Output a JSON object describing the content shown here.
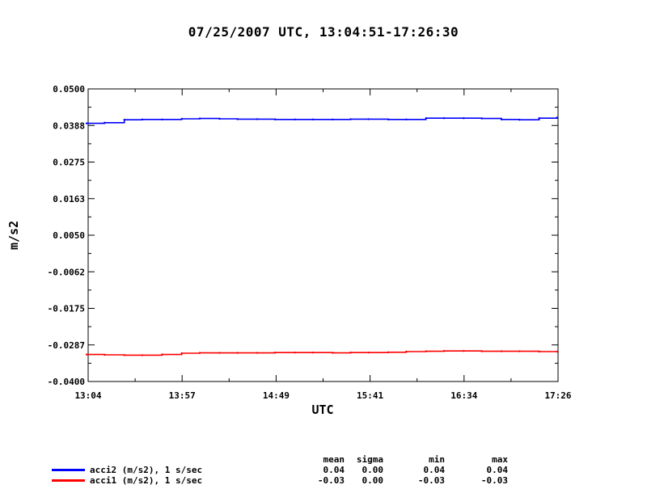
{
  "title": "07/25/2007  UTC, 13:04:51-17:26:30",
  "chart_data": {
    "type": "line",
    "title": "07/25/2007  UTC, 13:04:51-17:26:30",
    "xlabel": "UTC",
    "ylabel": "m/s2",
    "x_ticks": [
      "13:04",
      "13:57",
      "14:49",
      "15:41",
      "16:34",
      "17:26"
    ],
    "y_ticks": [
      "0.0500",
      "0.0388",
      "0.0275",
      "0.0163",
      "0.0050",
      "-0.0062",
      "-0.0175",
      "-0.0287",
      "-0.0400"
    ],
    "ylim": [
      -0.04,
      0.05
    ],
    "xlim": [
      "13:04:51",
      "17:26:30"
    ],
    "grid": false,
    "series": [
      {
        "name": "acci2 (m/s2), 1 s/sec",
        "color": "#0000ff",
        "x": [
          "13:04",
          "13:14",
          "13:25",
          "13:35",
          "13:46",
          "13:57",
          "14:07",
          "14:18",
          "14:28",
          "14:39",
          "14:49",
          "15:00",
          "15:10",
          "15:21",
          "15:31",
          "15:41",
          "15:52",
          "16:02",
          "16:13",
          "16:23",
          "16:34",
          "16:44",
          "16:55",
          "17:05",
          "17:16",
          "17:26"
        ],
        "values": [
          0.0394,
          0.0396,
          0.0405,
          0.0406,
          0.0406,
          0.0408,
          0.0409,
          0.0408,
          0.0407,
          0.0407,
          0.0406,
          0.0406,
          0.0406,
          0.0406,
          0.0407,
          0.0407,
          0.0406,
          0.0406,
          0.041,
          0.041,
          0.041,
          0.0409,
          0.0406,
          0.0405,
          0.041,
          0.0412
        ]
      },
      {
        "name": "acci1 (m/s2), 1 s/sec",
        "color": "#ff0000",
        "x": [
          "13:04",
          "13:14",
          "13:25",
          "13:35",
          "13:46",
          "13:57",
          "14:07",
          "14:18",
          "14:28",
          "14:39",
          "14:49",
          "15:00",
          "15:10",
          "15:21",
          "15:31",
          "15:41",
          "15:52",
          "16:02",
          "16:13",
          "16:23",
          "16:34",
          "16:44",
          "16:55",
          "17:05",
          "17:16",
          "17:26"
        ],
        "values": [
          -0.0317,
          -0.0318,
          -0.0319,
          -0.0319,
          -0.0317,
          -0.0313,
          -0.0312,
          -0.0312,
          -0.0312,
          -0.0312,
          -0.0311,
          -0.0311,
          -0.0311,
          -0.0312,
          -0.0311,
          -0.0311,
          -0.031,
          -0.0308,
          -0.0307,
          -0.0306,
          -0.0306,
          -0.0307,
          -0.0307,
          -0.0307,
          -0.0308,
          -0.0308
        ]
      }
    ],
    "stats": {
      "headers": [
        "mean",
        "sigma",
        "min",
        "max"
      ],
      "rows": [
        {
          "name": "acci2 (m/s2), 1 s/sec",
          "color": "#0000ff",
          "values": [
            "0.04",
            "0.00",
            "0.04",
            "0.04"
          ]
        },
        {
          "name": "acci1 (m/s2), 1 s/sec",
          "color": "#ff0000",
          "values": [
            "-0.03",
            "0.00",
            "-0.03",
            "-0.03"
          ]
        }
      ]
    }
  }
}
